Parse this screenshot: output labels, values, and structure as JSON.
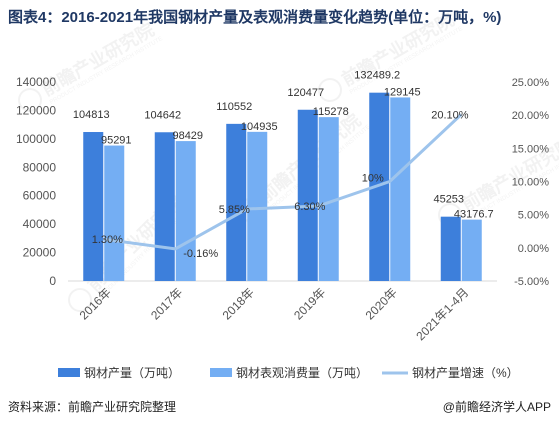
{
  "title": "图表4：2016-2021年我国钢材产量及表观消费量变化趋势(单位：万吨，%)",
  "footer": {
    "source": "资料来源：前瞻产业研究院整理",
    "brand": "@前瞻经济学人APP"
  },
  "watermark": {
    "main": "前瞻产业研究院",
    "sub": "PRODUCT INDUSTRY RESEARCH INSTITUTE"
  },
  "colors": {
    "production": "#3d7fdb",
    "consumption": "#74aef3",
    "growth": "#9ec4ec",
    "axis_text": "#555555"
  },
  "chart_data": {
    "type": "bar",
    "categories": [
      "2016年",
      "2017年",
      "2018年",
      "2019年",
      "2020年",
      "2021年1-4月"
    ],
    "series": [
      {
        "name": "钢材产量（万吨）",
        "type": "bar",
        "axis": "left",
        "values": [
          104813,
          104642,
          110552,
          120477,
          132489.2,
          45253
        ],
        "labels": [
          "104813",
          "104642",
          "110552",
          "120477",
          "132489.2",
          "45253"
        ]
      },
      {
        "name": "钢材表观消费量（万吨）",
        "type": "bar",
        "axis": "left",
        "values": [
          95291,
          98429,
          104935,
          115278,
          129145,
          43176.7
        ],
        "labels": [
          "95291",
          "98429",
          "104935",
          "115278",
          "129145",
          "43176.7"
        ]
      },
      {
        "name": "钢材产量增速（%）",
        "type": "line",
        "axis": "right",
        "values": [
          1.3,
          -0.16,
          5.85,
          6.3,
          10,
          20.1
        ],
        "labels": [
          "1.30%",
          "-0.16%",
          "5.85%",
          "6.30%",
          "10%",
          "20.10%"
        ]
      }
    ],
    "y_left": {
      "min": 0,
      "max": 140000,
      "ticks": [
        0,
        20000,
        40000,
        60000,
        80000,
        100000,
        120000,
        140000
      ],
      "tick_labels": [
        "0",
        "20000",
        "40000",
        "60000",
        "80000",
        "100000",
        "120000",
        "140000"
      ]
    },
    "y_right": {
      "min": -5,
      "max": 25,
      "ticks": [
        -5,
        0,
        5,
        10,
        15,
        20,
        25
      ],
      "tick_labels": [
        "-5.00%",
        "0.00%",
        "5.00%",
        "10.00%",
        "15.00%",
        "20.00%",
        "25.00%"
      ]
    },
    "grid": false,
    "legend_position": "bottom"
  }
}
